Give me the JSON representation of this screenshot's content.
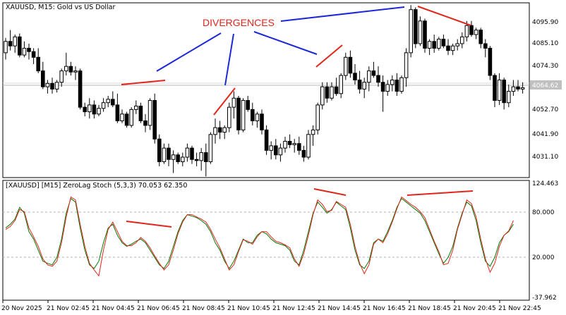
{
  "chart_data": [
    {
      "type": "candlestick",
      "title": "XAUUSD, M15:  Gold vs US Dollar",
      "ylim": [
        4025.0,
        4102.0
      ],
      "y_ticks": [
        "4095.90",
        "4085.10",
        "4074.30",
        "4063.50",
        "4052.70",
        "4041.90",
        "4031.10"
      ],
      "current_price": "4064.62",
      "candles": [
        [
          4080.0,
          4086.5,
          4077.0,
          4085.0
        ],
        [
          4085.0,
          4090.0,
          4081.0,
          4083.0
        ],
        [
          4083.0,
          4088.0,
          4080.0,
          4087.0
        ],
        [
          4087.0,
          4088.5,
          4078.0,
          4079.0
        ],
        [
          4079.0,
          4085.0,
          4078.0,
          4082.0
        ],
        [
          4082.0,
          4084.0,
          4077.0,
          4080.5
        ],
        [
          4080.5,
          4082.0,
          4075.0,
          4078.0
        ],
        [
          4078.0,
          4082.0,
          4071.0,
          4072.0
        ],
        [
          4072.0,
          4076.0,
          4064.0,
          4065.0
        ],
        [
          4065.0,
          4068.0,
          4062.0,
          4066.5
        ],
        [
          4066.5,
          4069.0,
          4062.0,
          4064.0
        ],
        [
          4064.0,
          4068.0,
          4062.5,
          4067.0
        ],
        [
          4067.0,
          4073.0,
          4065.0,
          4072.0
        ],
        [
          4072.0,
          4080.0,
          4070.0,
          4074.0
        ],
        [
          4074.0,
          4076.0,
          4070.0,
          4071.5
        ],
        [
          4071.5,
          4074.0,
          4068.0,
          4072.0
        ],
        [
          4072.0,
          4073.0,
          4055.0,
          4056.0
        ],
        [
          4056.0,
          4058.0,
          4052.0,
          4054.0
        ],
        [
          4054.0,
          4060.0,
          4051.0,
          4057.0
        ],
        [
          4057.0,
          4059.0,
          4051.0,
          4053.0
        ],
        [
          4053.0,
          4057.0,
          4052.0,
          4055.5
        ],
        [
          4055.5,
          4060.0,
          4054.0,
          4058.0
        ],
        [
          4058.0,
          4061.0,
          4056.0,
          4059.5
        ],
        [
          4059.5,
          4063.0,
          4056.0,
          4057.0
        ],
        [
          4057.0,
          4062.0,
          4049.0,
          4050.0
        ],
        [
          4050.0,
          4055.0,
          4049.0,
          4053.0
        ],
        [
          4053.0,
          4054.0,
          4047.0,
          4048.0
        ],
        [
          4048.0,
          4056.0,
          4047.0,
          4055.0
        ],
        [
          4055.0,
          4059.0,
          4053.0,
          4056.5
        ],
        [
          4056.5,
          4058.0,
          4049.0,
          4050.0
        ],
        [
          4050.0,
          4053.0,
          4045.0,
          4048.0
        ],
        [
          4048.0,
          4060.0,
          4046.0,
          4059.0
        ],
        [
          4059.0,
          4062.0,
          4040.0,
          4042.0
        ],
        [
          4042.0,
          4044.0,
          4030.0,
          4032.0
        ],
        [
          4032.0,
          4040.0,
          4031.0,
          4038.0
        ],
        [
          4038.0,
          4040.0,
          4030.0,
          4033.0
        ],
        [
          4033.0,
          4037.0,
          4027.0,
          4035.0
        ],
        [
          4035.0,
          4036.0,
          4031.0,
          4032.0
        ],
        [
          4032.0,
          4036.0,
          4030.0,
          4034.0
        ],
        [
          4034.0,
          4040.0,
          4032.0,
          4038.0
        ],
        [
          4038.0,
          4039.0,
          4031.0,
          4033.0
        ],
        [
          4033.0,
          4036.0,
          4030.0,
          4032.5
        ],
        [
          4032.5,
          4038.0,
          4028.0,
          4036.0
        ],
        [
          4036.0,
          4040.0,
          4025.5,
          4032.0
        ],
        [
          4032.0,
          4045.0,
          4031.0,
          4044.0
        ],
        [
          4044.0,
          4051.0,
          4040.0,
          4047.0
        ],
        [
          4047.0,
          4050.0,
          4042.0,
          4045.0
        ],
        [
          4045.0,
          4048.0,
          4042.0,
          4047.0
        ],
        [
          4047.0,
          4058.0,
          4045.0,
          4056.0
        ],
        [
          4056.0,
          4063.0,
          4051.0,
          4060.0
        ],
        [
          4060.0,
          4061.0,
          4044.0,
          4046.0
        ],
        [
          4046.0,
          4060.0,
          4045.0,
          4059.0
        ],
        [
          4059.0,
          4061.0,
          4054.0,
          4055.0
        ],
        [
          4055.0,
          4058.0,
          4048.0,
          4050.0
        ],
        [
          4050.0,
          4054.0,
          4047.0,
          4053.0
        ],
        [
          4053.0,
          4055.0,
          4044.0,
          4046.0
        ],
        [
          4046.0,
          4048.0,
          4035.0,
          4037.0
        ],
        [
          4037.0,
          4041.0,
          4033.0,
          4039.0
        ],
        [
          4039.0,
          4042.0,
          4033.0,
          4035.0
        ],
        [
          4035.0,
          4040.0,
          4032.0,
          4038.0
        ],
        [
          4038.0,
          4043.0,
          4036.0,
          4041.0
        ],
        [
          4041.0,
          4044.0,
          4038.0,
          4039.5
        ],
        [
          4039.5,
          4042.0,
          4036.0,
          4040.0
        ],
        [
          4040.0,
          4043.0,
          4035.0,
          4037.0
        ],
        [
          4037.0,
          4039.0,
          4032.0,
          4034.0
        ],
        [
          4034.0,
          4046.0,
          4033.0,
          4044.0
        ],
        [
          4044.0,
          4048.0,
          4039.0,
          4046.0
        ],
        [
          4046.0,
          4058.0,
          4044.0,
          4057.0
        ],
        [
          4057.0,
          4067.0,
          4055.0,
          4065.0
        ],
        [
          4065.0,
          4067.0,
          4058.0,
          4060.0
        ],
        [
          4060.0,
          4067.0,
          4059.0,
          4065.0
        ],
        [
          4065.0,
          4069.0,
          4061.0,
          4062.0
        ],
        [
          4062.0,
          4071.0,
          4060.0,
          4070.0
        ],
        [
          4070.0,
          4080.0,
          4068.0,
          4078.0
        ],
        [
          4078.0,
          4081.0,
          4069.0,
          4071.0
        ],
        [
          4071.0,
          4075.0,
          4066.0,
          4068.0
        ],
        [
          4068.0,
          4072.0,
          4062.0,
          4064.0
        ],
        [
          4064.0,
          4069.0,
          4060.0,
          4067.0
        ],
        [
          4067.0,
          4074.0,
          4063.0,
          4072.0
        ],
        [
          4072.0,
          4076.0,
          4069.0,
          4070.0
        ],
        [
          4070.0,
          4074.0,
          4065.0,
          4067.0
        ],
        [
          4067.0,
          4070.0,
          4054.0,
          4063.0
        ],
        [
          4063.0,
          4068.0,
          4061.0,
          4066.0
        ],
        [
          4066.0,
          4070.0,
          4063.0,
          4068.0
        ],
        [
          4068.0,
          4071.0,
          4061.0,
          4063.0
        ],
        [
          4063.0,
          4070.0,
          4062.0,
          4069.0
        ],
        [
          4069.0,
          4082.0,
          4065.0,
          4080.0
        ],
        [
          4080.0,
          4101.0,
          4078.0,
          4099.0
        ],
        [
          4099.0,
          4100.0,
          4082.0,
          4084.0
        ],
        [
          4084.0,
          4096.0,
          4083.0,
          4094.0
        ],
        [
          4094.0,
          4095.0,
          4080.0,
          4082.0
        ],
        [
          4082.0,
          4086.0,
          4079.0,
          4085.0
        ],
        [
          4085.0,
          4088.0,
          4080.0,
          4082.0
        ],
        [
          4082.0,
          4087.0,
          4081.0,
          4086.0
        ],
        [
          4086.0,
          4088.0,
          4082.0,
          4083.0
        ],
        [
          4083.0,
          4086.0,
          4079.0,
          4081.0
        ],
        [
          4081.0,
          4084.0,
          4079.0,
          4083.0
        ],
        [
          4083.0,
          4086.0,
          4081.0,
          4084.0
        ],
        [
          4084.0,
          4089.0,
          4082.0,
          4087.0
        ],
        [
          4087.0,
          4094.0,
          4085.0,
          4092.0
        ],
        [
          4092.0,
          4094.0,
          4087.0,
          4088.0
        ],
        [
          4088.0,
          4091.0,
          4086.0,
          4090.0
        ],
        [
          4090.0,
          4091.0,
          4082.0,
          4084.0
        ],
        [
          4084.0,
          4086.0,
          4078.0,
          4082.0
        ],
        [
          4082.0,
          4083.0,
          4068.0,
          4070.0
        ],
        [
          4070.0,
          4071.0,
          4056.0,
          4059.0
        ],
        [
          4059.0,
          4071.0,
          4057.0,
          4068.0
        ],
        [
          4068.0,
          4069.0,
          4055.0,
          4058.0
        ],
        [
          4058.0,
          4066.0,
          4056.0,
          4063.0
        ],
        [
          4063.0,
          4068.0,
          4061.0,
          4065.0
        ],
        [
          4065.0,
          4068.0,
          4063.0,
          4064.0
        ],
        [
          4064.0,
          4067.0,
          4062.0,
          4064.6
        ]
      ],
      "annotation": "DIVERGENCES"
    },
    {
      "type": "line",
      "title": "[XAUUSD] [M15] ZeroLag Stoch (5,3,3) 70.053 62.350",
      "ylim": [
        -37.962,
        124.463
      ],
      "y_ticks": [
        "124.463",
        "80.000",
        "20.000",
        "-37.962"
      ],
      "levels": [
        80,
        20
      ],
      "series": [
        {
          "color": "#007a00",
          "values": [
            60,
            65,
            72,
            88,
            80,
            55,
            45,
            30,
            15,
            12,
            10,
            20,
            45,
            80,
            100,
            95,
            60,
            30,
            10,
            5,
            15,
            40,
            60,
            65,
            50,
            40,
            35,
            38,
            42,
            45,
            40,
            30,
            20,
            10,
            5,
            15,
            35,
            55,
            70,
            78,
            76,
            74,
            70,
            65,
            55,
            40,
            30,
            15,
            5,
            15,
            30,
            45,
            40,
            40,
            50,
            55,
            52,
            45,
            40,
            38,
            36,
            30,
            15,
            10,
            30,
            55,
            80,
            95,
            88,
            80,
            85,
            95,
            90,
            85,
            60,
            30,
            10,
            5,
            15,
            40,
            45,
            42,
            55,
            70,
            88,
            100,
            95,
            90,
            85,
            80,
            70,
            55,
            40,
            25,
            12,
            20,
            35,
            60,
            80,
            95,
            90,
            70,
            40,
            15,
            8,
            20,
            40,
            50,
            55,
            65
          ]
        },
        {
          "color": "#e0251b",
          "values": [
            58,
            62,
            70,
            85,
            82,
            60,
            48,
            35,
            18,
            10,
            8,
            15,
            40,
            75,
            102,
            98,
            65,
            35,
            12,
            3,
            -5,
            30,
            58,
            68,
            55,
            42,
            36,
            36,
            40,
            47,
            42,
            33,
            22,
            12,
            3,
            10,
            30,
            52,
            68,
            78,
            78,
            75,
            72,
            68,
            58,
            45,
            33,
            18,
            3,
            10,
            28,
            44,
            42,
            38,
            48,
            55,
            55,
            48,
            42,
            40,
            37,
            33,
            18,
            8,
            25,
            50,
            78,
            98,
            92,
            82,
            84,
            96,
            92,
            88,
            65,
            35,
            12,
            -2,
            10,
            38,
            45,
            40,
            52,
            68,
            86,
            102,
            97,
            92,
            88,
            82,
            74,
            58,
            42,
            28,
            10,
            12,
            30,
            58,
            78,
            98,
            93,
            75,
            45,
            18,
            0,
            12,
            35,
            50,
            56,
            70
          ]
        }
      ]
    }
  ],
  "x_ticks": [
    "20 Nov 2025",
    "21 Nov 02:45",
    "21 Nov 04:45",
    "21 Nov 06:45",
    "21 Nov 08:45",
    "21 Nov 10:45",
    "21 Nov 12:45",
    "21 Nov 14:45",
    "21 Nov 16:45",
    "21 Nov 18:45",
    "21 Nov 20:45",
    "21 Nov 22:45"
  ],
  "colors": {
    "bull_body": "#ffffff",
    "bear_body": "#000000",
    "divergence_line": "#e0251b",
    "pointer_line": "#1c28d8",
    "price_tag_bg": "#c0c0c0"
  }
}
